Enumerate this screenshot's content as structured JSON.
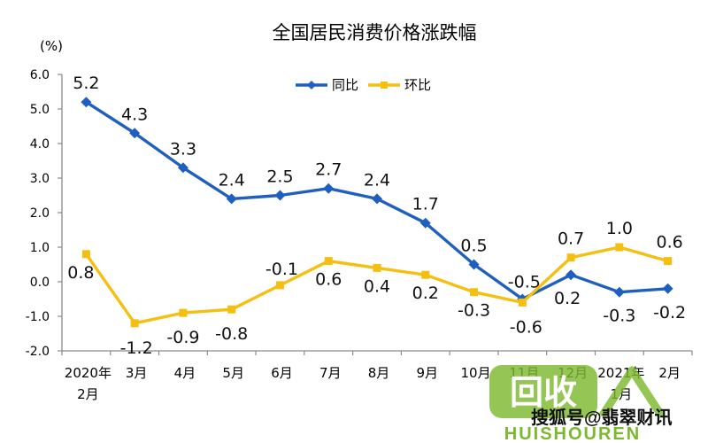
{
  "chart_data": {
    "type": "line",
    "title": "全国居民消费价格涨跌幅",
    "ylabel": "(%)",
    "ylim": [
      -2.0,
      6.0
    ],
    "yticks": [
      "6.0",
      "5.0",
      "4.0",
      "3.0",
      "2.0",
      "1.0",
      "0.0",
      "-1.0",
      "-2.0"
    ],
    "categories": [
      [
        "2020年",
        "2月"
      ],
      [
        "3月"
      ],
      [
        "4月"
      ],
      [
        "5月"
      ],
      [
        "6月"
      ],
      [
        "7月"
      ],
      [
        "8月"
      ],
      [
        "9月"
      ],
      [
        "10月"
      ],
      [
        "11月"
      ],
      [
        "12月"
      ],
      [
        "2021年",
        "1月"
      ],
      [
        "2月"
      ]
    ],
    "series": [
      {
        "name": "同比",
        "color": "#1f5fbf",
        "marker": "diamond",
        "values": [
          5.2,
          4.3,
          3.3,
          2.4,
          2.5,
          2.7,
          2.4,
          1.7,
          0.5,
          -0.5,
          0.2,
          -0.3,
          -0.2
        ],
        "labels": [
          "5.2",
          "4.3",
          "3.3",
          "2.4",
          "2.5",
          "2.7",
          "2.4",
          "1.7",
          "0.5",
          "-0.5",
          "0.2",
          "-0.3",
          "-0.2"
        ]
      },
      {
        "name": "环比",
        "color": "#f5bf12",
        "marker": "square",
        "values": [
          0.8,
          -1.2,
          -0.9,
          -0.8,
          -0.1,
          0.6,
          0.4,
          0.2,
          -0.3,
          -0.6,
          0.7,
          1.0,
          0.6
        ],
        "labels": [
          "0.8",
          "-1.2",
          "-0.9",
          "-0.8",
          "-0.1",
          "0.6",
          "0.4",
          "0.2",
          "-0.3",
          "-0.6",
          "0.7",
          "1.0",
          "0.6"
        ]
      }
    ],
    "legend": "top-center",
    "grid": false
  },
  "watermark": {
    "brand": "回收",
    "site": "HUISHOUREN",
    "source": "搜狐号@翡翠财讯",
    "color": "#7cb82f"
  }
}
